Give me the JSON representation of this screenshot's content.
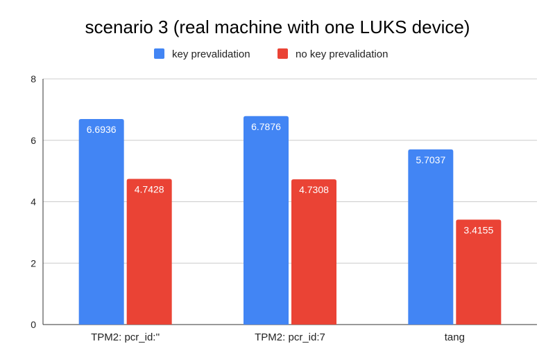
{
  "chart_data": {
    "type": "bar",
    "title": "scenario 3 (real machine with one LUKS device)",
    "xlabel": "",
    "ylabel": "",
    "categories": [
      "TPM2: pcr_id:''",
      "TPM2: pcr_id:7",
      "tang"
    ],
    "series": [
      {
        "name": "key prevalidation",
        "color": "#4285f4",
        "values": [
          6.6936,
          6.7876,
          5.7037
        ],
        "labels": [
          "6.6936",
          "6.7876",
          "5.7037"
        ]
      },
      {
        "name": "no key prevalidation",
        "color": "#ea4335",
        "values": [
          4.7428,
          4.7308,
          3.4155
        ],
        "labels": [
          "4.7428",
          "4.7308",
          "3.4155"
        ]
      }
    ],
    "ylim": [
      0,
      8
    ],
    "yticks": [
      "0",
      "2",
      "4",
      "6",
      "8"
    ],
    "grid": true,
    "legend_position": "top"
  }
}
